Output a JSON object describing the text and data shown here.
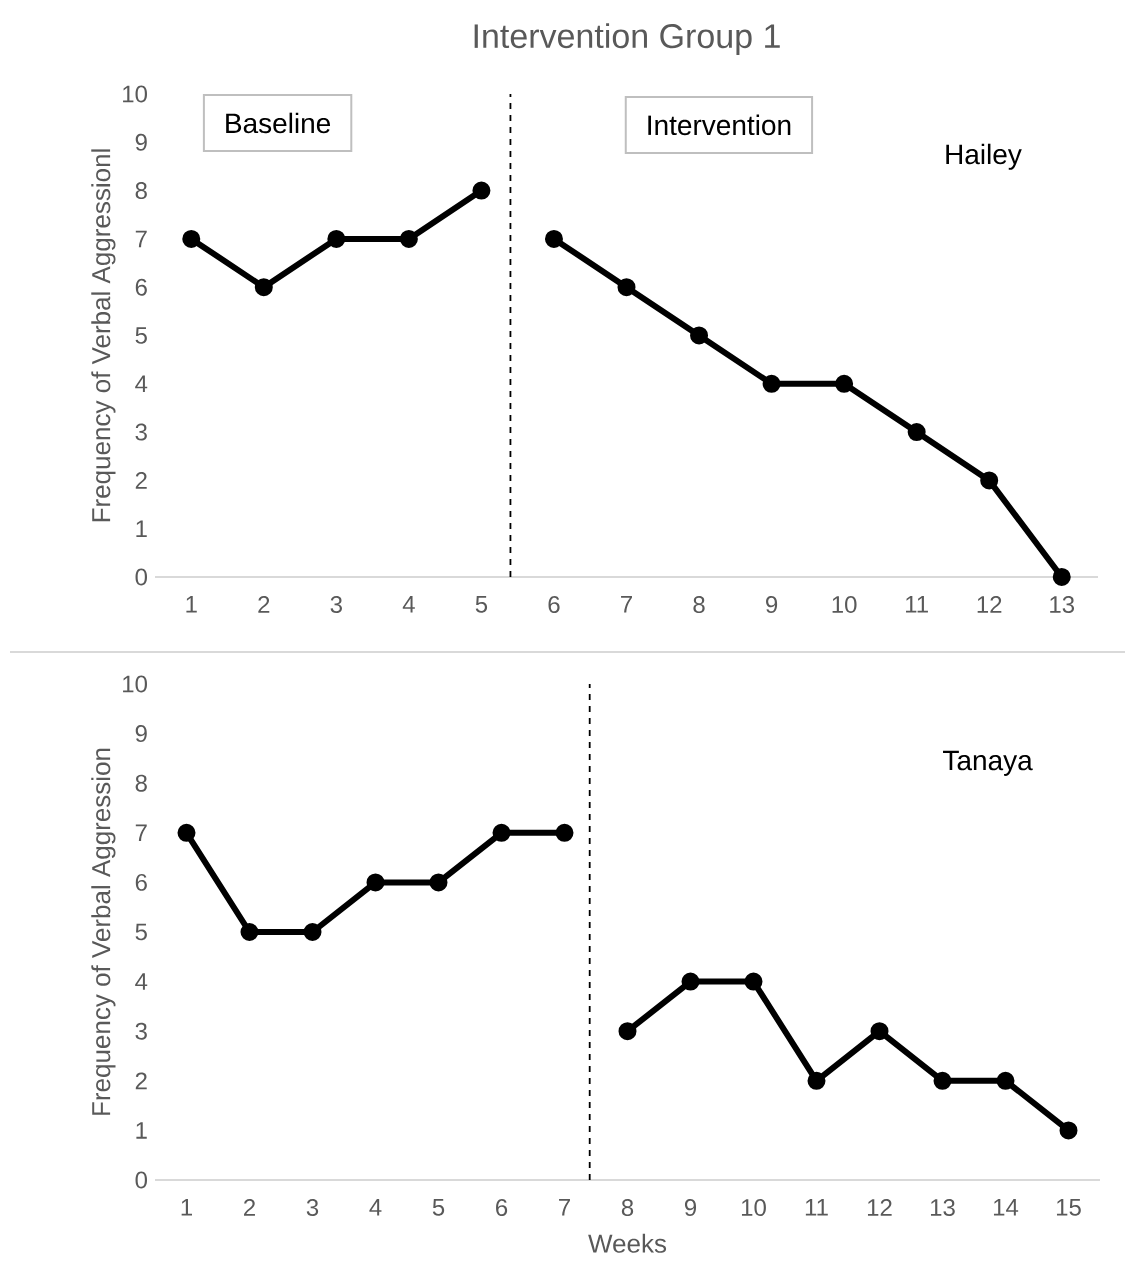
{
  "chart_data": [
    {
      "type": "line",
      "title": "Intervention Group 1",
      "ylabel": "Frequency of Verbal Aggressionl",
      "marker": "circle",
      "x": [
        1,
        2,
        3,
        4,
        5,
        6,
        7,
        8,
        9,
        10,
        11,
        12,
        13
      ],
      "xlim": [
        0.5,
        13.5
      ],
      "xticks": [
        1,
        2,
        3,
        4,
        5,
        6,
        7,
        8,
        9,
        10,
        11,
        12,
        13
      ],
      "ylim": [
        0,
        10
      ],
      "yticks": [
        0,
        1,
        2,
        3,
        4,
        5,
        6,
        7,
        8,
        9,
        10
      ],
      "series": [
        {
          "color": "#000000",
          "values": [
            7,
            6,
            7,
            7,
            8,
            null,
            null,
            null,
            null,
            null,
            null,
            null,
            null
          ]
        },
        {
          "color": "#000000",
          "values": [
            null,
            null,
            null,
            null,
            null,
            7,
            6,
            5,
            4,
            4,
            3,
            2,
            0
          ]
        }
      ],
      "ref_lines": [
        {
          "axis": "x",
          "value": 5.4,
          "color": "#000000",
          "line_style": "dashed"
        }
      ],
      "annotations": [
        "Baseline",
        "Intervention",
        "Hailey"
      ]
    },
    {
      "type": "line",
      "xlabel": "Weeks",
      "ylabel": "Frequency of Verbal Aggression",
      "marker": "circle",
      "x": [
        1,
        2,
        3,
        4,
        5,
        6,
        7,
        8,
        9,
        10,
        11,
        12,
        13,
        14,
        15
      ],
      "xlim": [
        0.5,
        15.5
      ],
      "xticks": [
        1,
        2,
        3,
        4,
        5,
        6,
        7,
        8,
        9,
        10,
        11,
        12,
        13,
        14,
        15
      ],
      "ylim": [
        0,
        10
      ],
      "yticks": [
        0,
        1,
        2,
        3,
        4,
        5,
        6,
        7,
        8,
        9,
        10
      ],
      "series": [
        {
          "color": "#000000",
          "values": [
            7,
            5,
            5,
            6,
            6,
            7,
            7,
            null,
            null,
            null,
            null,
            null,
            null,
            null,
            null
          ]
        },
        {
          "color": "#000000",
          "values": [
            null,
            null,
            null,
            null,
            null,
            null,
            null,
            3,
            4,
            4,
            2,
            3,
            2,
            2,
            1
          ]
        }
      ],
      "ref_lines": [
        {
          "axis": "x",
          "value": 7.4,
          "color": "#000000",
          "line_style": "dashed"
        }
      ],
      "annotations": [
        "Tanaya"
      ]
    }
  ]
}
